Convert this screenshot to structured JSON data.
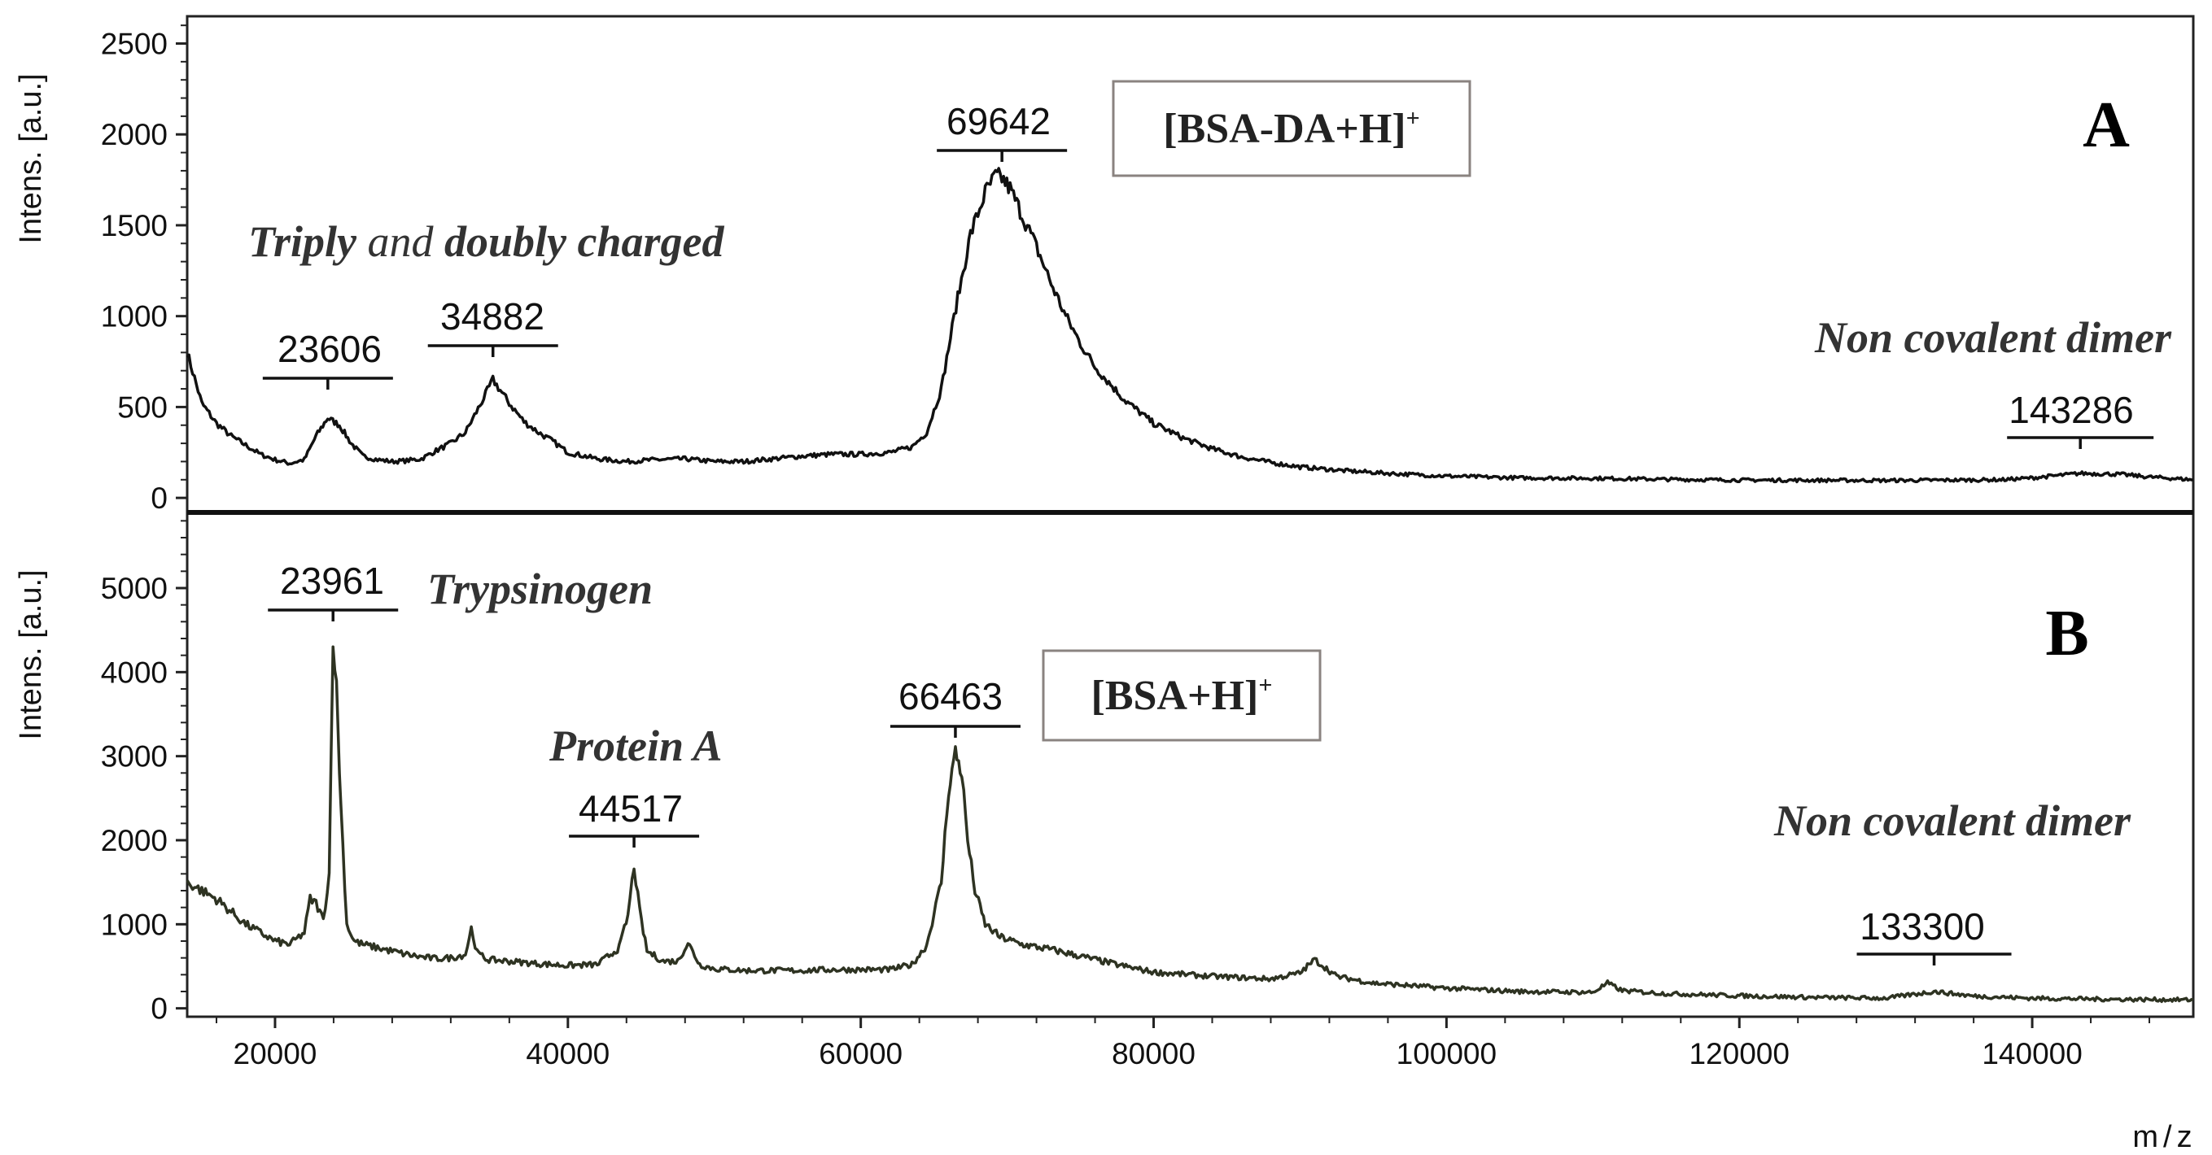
{
  "chart_data": [
    {
      "type": "line",
      "panel": "A",
      "ylabel": "Intens. [a.u.]",
      "xlabel": "",
      "xlim": [
        14000,
        151000
      ],
      "ylim": [
        -80,
        2650
      ],
      "yticks": [
        0,
        500,
        1000,
        1500,
        2000,
        2500
      ],
      "ytick_labels": [
        "0",
        "500",
        "1000",
        "1500",
        "2000",
        "2500"
      ],
      "color": "#111111",
      "series": [
        {
          "name": "spectrum A",
          "x": [
            14000,
            15000,
            16000,
            17000,
            18000,
            19000,
            20000,
            21000,
            22000,
            22800,
            23600,
            24400,
            25200,
            26000,
            27000,
            28000,
            29000,
            30000,
            31000,
            32000,
            33000,
            34000,
            34882,
            36000,
            37000,
            38000,
            39000,
            40000,
            42000,
            44000,
            46000,
            48000,
            50000,
            52000,
            54000,
            56000,
            58000,
            60000,
            62000,
            63500,
            64500,
            65500,
            66500,
            67500,
            68500,
            69200,
            69642,
            70200,
            71000,
            72000,
            73000,
            74000,
            75000,
            76000,
            78000,
            80000,
            82000,
            84000,
            86000,
            88000,
            90000,
            93000,
            96000,
            100000,
            105000,
            110000,
            115000,
            120000,
            125000,
            130000,
            135000,
            138000,
            140000,
            143286,
            146000,
            148000,
            151000
          ],
          "values": [
            800,
            520,
            410,
            340,
            290,
            240,
            210,
            190,
            210,
            340,
            440,
            400,
            300,
            230,
            210,
            200,
            205,
            215,
            260,
            300,
            360,
            510,
            650,
            520,
            420,
            360,
            310,
            250,
            215,
            200,
            210,
            215,
            200,
            200,
            215,
            230,
            240,
            240,
            250,
            280,
            360,
            600,
            1050,
            1450,
            1680,
            1770,
            1760,
            1700,
            1560,
            1380,
            1180,
            1000,
            850,
            720,
            540,
            410,
            330,
            270,
            225,
            195,
            170,
            150,
            135,
            120,
            110,
            108,
            102,
            98,
            97,
            96,
            98,
            100,
            110,
            135,
            130,
            115,
            100
          ]
        }
      ],
      "peak_labels": [
        "23606",
        "34882",
        "69642",
        "143286"
      ],
      "annotations": [
        "Triply and doubly charged",
        "Non covalent dimer"
      ],
      "ion_label": "[BSA-DA+H]+",
      "panel_letter": "A"
    },
    {
      "type": "line",
      "panel": "B",
      "ylabel": "Intens. [a.u.]",
      "xlabel": "m/z",
      "xlim": [
        14000,
        151000
      ],
      "ylim": [
        -100,
        5900
      ],
      "xticks": [
        20000,
        40000,
        60000,
        80000,
        100000,
        120000,
        140000
      ],
      "xtick_labels": [
        "20000",
        "40000",
        "60000",
        "80000",
        "100000",
        "120000",
        "140000"
      ],
      "yticks": [
        0,
        1000,
        2000,
        3000,
        4000,
        5000
      ],
      "ytick_labels": [
        "0",
        "1000",
        "2000",
        "3000",
        "4000",
        "5000"
      ],
      "color": "#2e3322",
      "series": [
        {
          "name": "spectrum B",
          "x": [
            14000,
            15000,
            16000,
            17000,
            18000,
            19000,
            20000,
            21000,
            22000,
            22400,
            22800,
            23300,
            23700,
            23961,
            24200,
            24500,
            24900,
            25400,
            26000,
            27000,
            28000,
            29000,
            30000,
            31000,
            32000,
            33000,
            33400,
            33800,
            34500,
            36000,
            38000,
            40000,
            42000,
            43500,
            44100,
            44517,
            44900,
            45400,
            46500,
            47500,
            48200,
            49000,
            50000,
            52000,
            54000,
            56000,
            58000,
            60000,
            62000,
            63500,
            64500,
            65500,
            66000,
            66463,
            66900,
            67300,
            67800,
            68500,
            69500,
            71000,
            73000,
            75000,
            78000,
            80000,
            84000,
            88000,
            90000,
            91000,
            92500,
            95000,
            100000,
            105000,
            110000,
            111000,
            112000,
            115000,
            120000,
            125000,
            130000,
            133300,
            136000,
            140000,
            145000,
            151000
          ],
          "values": [
            1500,
            1400,
            1300,
            1150,
            1000,
            900,
            800,
            760,
            900,
            1300,
            1250,
            1050,
            1600,
            4450,
            3800,
            2400,
            1000,
            800,
            760,
            720,
            680,
            640,
            610,
            590,
            600,
            640,
            950,
            660,
            580,
            560,
            530,
            510,
            520,
            720,
            1100,
            1700,
            1150,
            680,
            560,
            560,
            780,
            520,
            470,
            450,
            450,
            450,
            460,
            460,
            460,
            520,
            750,
            1500,
            2600,
            3050,
            2800,
            2000,
            1400,
            1000,
            850,
            760,
            700,
            620,
            500,
            430,
            380,
            350,
            420,
            580,
            380,
            300,
            240,
            200,
            190,
            300,
            210,
            175,
            150,
            130,
            120,
            200,
            145,
            120,
            108,
            100
          ]
        }
      ],
      "peak_labels": [
        "23961",
        "44517",
        "66463",
        "133300"
      ],
      "annotations": [
        "Trypsinogen",
        "Protein A",
        "Non covalent dimer"
      ],
      "ion_label": "[BSA+H]+",
      "panel_letter": "B"
    }
  ],
  "text": {
    "a_ylabel": "Intens. [a.u.]",
    "b_ylabel": "Intens. [a.u.]",
    "xlabel": "m/z",
    "a_peak_1": "23606",
    "a_peak_2": "34882",
    "a_peak_3": "69642",
    "a_peak_4": "143286",
    "a_annot_1_part_1": "Triply",
    "a_annot_1_part_2": "and",
    "a_annot_1_part_3": "doubly charged",
    "a_annot_2": "Non covalent dimer",
    "a_ion_main": "[BSA-DA+H]",
    "a_ion_sup": "+",
    "a_letter": "A",
    "b_peak_1": "23961",
    "b_peak_2": "44517",
    "b_peak_3": "66463",
    "b_peak_4": "133300",
    "b_annot_1": "Trypsinogen",
    "b_annot_2": "Protein A",
    "b_annot_3": "Non covalent dimer",
    "b_ion_main": "[BSA+H]",
    "b_ion_sup": "+",
    "b_letter": "B"
  }
}
